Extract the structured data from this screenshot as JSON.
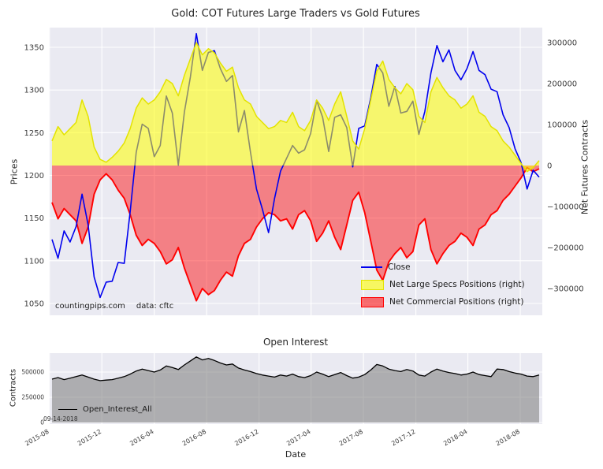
{
  "style": {
    "figure_background": "#ffffff",
    "plot_background": "#eaeaf2",
    "grid_color": "#ffffff"
  },
  "chart_data": [
    {
      "type": "line",
      "title": "Gold: COT Futures Large Traders vs Gold Futures",
      "xlabel": "",
      "ylabel_left": "Prices",
      "ylabel_right": "Net Futures Contracts",
      "yticks_left": [
        1050,
        1100,
        1150,
        1200,
        1250,
        1300,
        1350
      ],
      "yticks_right": [
        -300000,
        -200000,
        -100000,
        0,
        100000,
        200000,
        300000
      ],
      "ylim_left": [
        1036,
        1373
      ],
      "ylim_right": [
        -365000,
        335000
      ],
      "grid": true,
      "legend_position": "lower right",
      "annotations": [
        "countingpips.com",
        "data: cftc"
      ],
      "x": [
        "2015-08-07",
        "2015-08-21",
        "2015-09-04",
        "2015-09-18",
        "2015-10-02",
        "2015-10-16",
        "2015-10-30",
        "2015-11-13",
        "2015-11-27",
        "2015-12-11",
        "2015-12-25",
        "2016-01-08",
        "2016-01-22",
        "2016-02-05",
        "2016-02-19",
        "2016-03-04",
        "2016-03-18",
        "2016-04-01",
        "2016-04-15",
        "2016-04-29",
        "2016-05-13",
        "2016-05-27",
        "2016-06-10",
        "2016-06-24",
        "2016-07-08",
        "2016-07-22",
        "2016-08-05",
        "2016-08-19",
        "2016-09-02",
        "2016-09-16",
        "2016-09-30",
        "2016-10-14",
        "2016-10-28",
        "2016-11-11",
        "2016-11-25",
        "2016-12-09",
        "2016-12-23",
        "2017-01-06",
        "2017-01-20",
        "2017-02-03",
        "2017-02-17",
        "2017-03-03",
        "2017-03-17",
        "2017-03-31",
        "2017-04-14",
        "2017-04-28",
        "2017-05-12",
        "2017-05-26",
        "2017-06-09",
        "2017-06-23",
        "2017-07-07",
        "2017-07-21",
        "2017-08-04",
        "2017-08-18",
        "2017-09-01",
        "2017-09-15",
        "2017-09-29",
        "2017-10-13",
        "2017-10-27",
        "2017-11-10",
        "2017-11-24",
        "2017-12-08",
        "2017-12-22",
        "2018-01-05",
        "2018-01-19",
        "2018-02-02",
        "2018-02-16",
        "2018-03-02",
        "2018-03-16",
        "2018-03-30",
        "2018-04-13",
        "2018-04-27",
        "2018-05-11",
        "2018-05-25",
        "2018-06-08",
        "2018-06-22",
        "2018-07-06",
        "2018-07-20",
        "2018-08-03",
        "2018-08-17",
        "2018-08-31",
        "2018-09-14"
      ],
      "series": [
        {
          "name": "Close",
          "axis": "left",
          "type": "line",
          "color": "#0000ee",
          "values": [
            1125,
            1103,
            1135,
            1122,
            1140,
            1178,
            1142,
            1081,
            1057,
            1075,
            1076,
            1098,
            1097,
            1158,
            1227,
            1260,
            1255,
            1222,
            1235,
            1293,
            1273,
            1212,
            1274,
            1315,
            1366,
            1323,
            1344,
            1346,
            1325,
            1310,
            1317,
            1251,
            1276,
            1227,
            1184,
            1160,
            1133,
            1173,
            1205,
            1220,
            1235,
            1226,
            1230,
            1249,
            1288,
            1268,
            1228,
            1268,
            1271,
            1256,
            1210,
            1255,
            1258,
            1291,
            1330,
            1320,
            1281,
            1304,
            1273,
            1275,
            1287,
            1248,
            1275,
            1320,
            1352,
            1333,
            1347,
            1323,
            1312,
            1325,
            1345,
            1323,
            1318,
            1301,
            1298,
            1271,
            1256,
            1231,
            1215,
            1184,
            1206,
            1198
          ]
        },
        {
          "name": "Net Large Specs Positions (right)",
          "axis": "right",
          "type": "area",
          "fill_color": "#ffff00",
          "edge_color": "#e3e300",
          "fill_alpha": 0.55,
          "values": [
            60000,
            95000,
            75000,
            90000,
            105000,
            160000,
            120000,
            45000,
            15000,
            8000,
            20000,
            35000,
            55000,
            90000,
            140000,
            165000,
            150000,
            160000,
            180000,
            210000,
            200000,
            170000,
            220000,
            260000,
            300000,
            270000,
            285000,
            275000,
            250000,
            230000,
            240000,
            190000,
            160000,
            150000,
            120000,
            105000,
            90000,
            95000,
            110000,
            105000,
            130000,
            95000,
            85000,
            110000,
            160000,
            140000,
            110000,
            150000,
            180000,
            120000,
            60000,
            40000,
            90000,
            160000,
            230000,
            255000,
            210000,
            190000,
            175000,
            200000,
            185000,
            120000,
            105000,
            180000,
            215000,
            190000,
            170000,
            160000,
            140000,
            150000,
            170000,
            130000,
            120000,
            95000,
            85000,
            60000,
            45000,
            25000,
            5000,
            -15000,
            -5000,
            12000
          ]
        },
        {
          "name": "Net Commercial Positions (right)",
          "axis": "right",
          "type": "area",
          "fill_color": "#ff0000",
          "edge_color": "#ff0000",
          "fill_alpha": 0.45,
          "values": [
            -90000,
            -130000,
            -105000,
            -120000,
            -135000,
            -190000,
            -150000,
            -70000,
            -35000,
            -20000,
            -35000,
            -60000,
            -80000,
            -120000,
            -170000,
            -195000,
            -180000,
            -190000,
            -210000,
            -240000,
            -230000,
            -200000,
            -250000,
            -290000,
            -330000,
            -300000,
            -315000,
            -305000,
            -280000,
            -260000,
            -270000,
            -220000,
            -190000,
            -180000,
            -150000,
            -130000,
            -115000,
            -120000,
            -135000,
            -130000,
            -155000,
            -120000,
            -110000,
            -135000,
            -185000,
            -165000,
            -135000,
            -175000,
            -205000,
            -145000,
            -85000,
            -65000,
            -115000,
            -185000,
            -255000,
            -280000,
            -235000,
            -215000,
            -200000,
            -225000,
            -210000,
            -145000,
            -130000,
            -205000,
            -240000,
            -215000,
            -195000,
            -185000,
            -165000,
            -175000,
            -195000,
            -155000,
            -145000,
            -120000,
            -110000,
            -85000,
            -70000,
            -50000,
            -30000,
            -5000,
            -15000,
            -8000
          ]
        }
      ]
    },
    {
      "type": "area",
      "title": "Open Interest",
      "xlabel": "Date",
      "ylabel": "Contracts",
      "yticks": [
        0,
        250000,
        500000
      ],
      "ylim": [
        0,
        690000
      ],
      "grid": true,
      "legend_position": "lower left",
      "annotations": [
        "09-14-2018"
      ],
      "xticks": [
        "2015-08",
        "2015-12",
        "2016-04",
        "2016-08",
        "2016-12",
        "2017-04",
        "2017-08",
        "2017-12",
        "2018-04",
        "2018-08"
      ],
      "x": [
        "2015-08-07",
        "2015-08-21",
        "2015-09-04",
        "2015-09-18",
        "2015-10-02",
        "2015-10-16",
        "2015-10-30",
        "2015-11-13",
        "2015-11-27",
        "2015-12-11",
        "2015-12-25",
        "2016-01-08",
        "2016-01-22",
        "2016-02-05",
        "2016-02-19",
        "2016-03-04",
        "2016-03-18",
        "2016-04-01",
        "2016-04-15",
        "2016-04-29",
        "2016-05-13",
        "2016-05-27",
        "2016-06-10",
        "2016-06-24",
        "2016-07-08",
        "2016-07-22",
        "2016-08-05",
        "2016-08-19",
        "2016-09-02",
        "2016-09-16",
        "2016-09-30",
        "2016-10-14",
        "2016-10-28",
        "2016-11-11",
        "2016-11-25",
        "2016-12-09",
        "2016-12-23",
        "2017-01-06",
        "2017-01-20",
        "2017-02-03",
        "2017-02-17",
        "2017-03-03",
        "2017-03-17",
        "2017-03-31",
        "2017-04-14",
        "2017-04-28",
        "2017-05-12",
        "2017-05-26",
        "2017-06-09",
        "2017-06-23",
        "2017-07-07",
        "2017-07-21",
        "2017-08-04",
        "2017-08-18",
        "2017-09-01",
        "2017-09-15",
        "2017-09-29",
        "2017-10-13",
        "2017-10-27",
        "2017-11-10",
        "2017-11-24",
        "2017-12-08",
        "2017-12-22",
        "2018-01-05",
        "2018-01-19",
        "2018-02-02",
        "2018-02-16",
        "2018-03-02",
        "2018-03-16",
        "2018-03-30",
        "2018-04-13",
        "2018-04-27",
        "2018-05-11",
        "2018-05-25",
        "2018-06-08",
        "2018-06-22",
        "2018-07-06",
        "2018-07-20",
        "2018-08-03",
        "2018-08-17",
        "2018-08-31",
        "2018-09-14"
      ],
      "series": [
        {
          "name": "Open_Interest_All",
          "type": "area",
          "fill_color": "#7a7a7a",
          "edge_color": "#000000",
          "fill_alpha": 0.55,
          "values": [
            430000,
            445000,
            425000,
            440000,
            455000,
            470000,
            450000,
            430000,
            415000,
            420000,
            425000,
            440000,
            455000,
            480000,
            510000,
            530000,
            515000,
            500000,
            520000,
            560000,
            545000,
            525000,
            570000,
            610000,
            650000,
            620000,
            635000,
            615000,
            590000,
            570000,
            580000,
            540000,
            520000,
            505000,
            485000,
            470000,
            460000,
            450000,
            470000,
            460000,
            480000,
            455000,
            445000,
            465000,
            500000,
            480000,
            455000,
            475000,
            495000,
            465000,
            440000,
            450000,
            475000,
            520000,
            575000,
            560000,
            530000,
            515000,
            505000,
            525000,
            510000,
            470000,
            460000,
            500000,
            530000,
            510000,
            495000,
            485000,
            470000,
            480000,
            500000,
            475000,
            465000,
            455000,
            530000,
            525000,
            505000,
            490000,
            480000,
            460000,
            455000,
            470000
          ]
        }
      ]
    }
  ]
}
